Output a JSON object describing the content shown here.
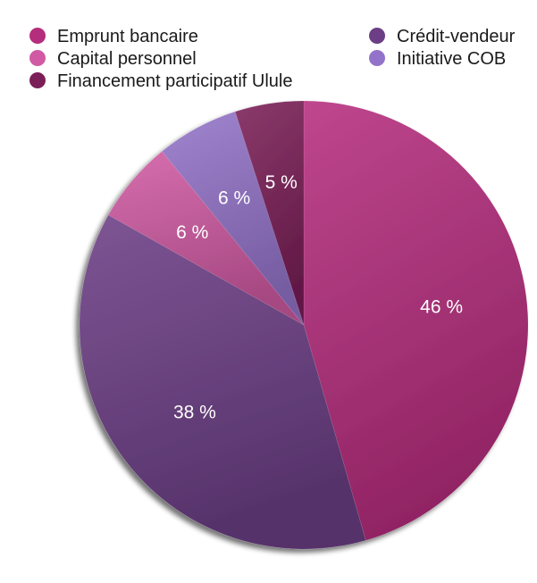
{
  "chart_data": {
    "type": "pie",
    "title": "",
    "categories": [
      "Emprunt bancaire",
      "Crédit-vendeur",
      "Capital personnel",
      "Initiative COB",
      "Financement participatif Ulule"
    ],
    "values": [
      46,
      38,
      6,
      6,
      5
    ],
    "labels": [
      "46 %",
      "38 %",
      "6 %",
      "6 %",
      "5 %"
    ],
    "colors": [
      "#b52d7d",
      "#6c3e85",
      "#d05aa3",
      "#9373c9",
      "#7b1f57"
    ],
    "legend": {
      "placement": "top",
      "columns": 2
    },
    "start_angle_deg": 0,
    "direction": "clockwise"
  }
}
